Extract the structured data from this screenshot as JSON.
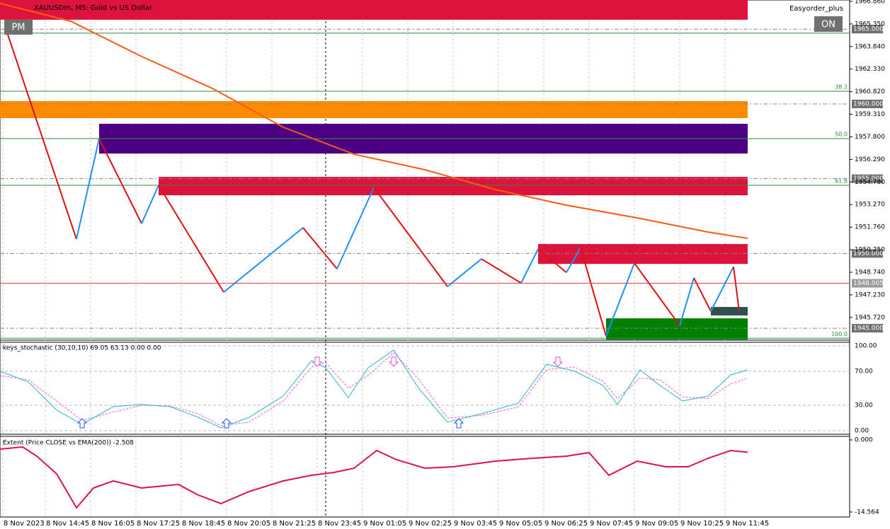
{
  "header": {
    "symbol": "XAUUSDm, M5: Gold vs US Dollar",
    "expert": "Easyorder_plus",
    "pm_button": "PM",
    "on_button": "ON"
  },
  "time_axis": {
    "xlim": [
      -1,
      298
    ],
    "ticks": [
      {
        "value": 0,
        "label": "8 Nov 2023"
      },
      {
        "value": 15,
        "label": "8 Nov 14:45"
      },
      {
        "value": 31,
        "label": "8 Nov 16:05"
      },
      {
        "value": 47,
        "label": "8 Nov 17:25"
      },
      {
        "value": 63,
        "label": "8 Nov 18:45"
      },
      {
        "value": 79,
        "label": "8 Nov 20:05"
      },
      {
        "value": 95,
        "label": "8 Nov 21:25"
      },
      {
        "value": 111,
        "label": "8 Nov 23:45"
      },
      {
        "value": 127,
        "label": "9 Nov 01:05"
      },
      {
        "value": 143,
        "label": "9 Nov 02:25"
      },
      {
        "value": 159,
        "label": "9 Nov 03:45"
      },
      {
        "value": 175,
        "label": "9 Nov 05:05"
      },
      {
        "value": 191,
        "label": "9 Nov 06:25"
      },
      {
        "value": 207,
        "label": "9 Nov 07:45"
      },
      {
        "value": 223,
        "label": "9 Nov 09:05"
      },
      {
        "value": 239,
        "label": "9 Nov 10:25"
      },
      {
        "value": 255,
        "label": "9 Nov 11:45"
      }
    ],
    "crosshair": 114
  },
  "main_panel": {
    "ylim": [
      1944.2,
      1966.95
    ],
    "ticks": [
      {
        "value": 1966.86,
        "label": "1966.860"
      },
      {
        "value": 1965.35,
        "label": "1965.350"
      },
      {
        "value": 1963.84,
        "label": "1963.840"
      },
      {
        "value": 1962.33,
        "label": "1962.330"
      },
      {
        "value": 1960.82,
        "label": "1960.820"
      },
      {
        "value": 1959.31,
        "label": "1959.310"
      },
      {
        "value": 1957.8,
        "label": "1957.800"
      },
      {
        "value": 1956.29,
        "label": "1956.290"
      },
      {
        "value": 1954.78,
        "label": "1954.780"
      },
      {
        "value": 1953.27,
        "label": "1953.270"
      },
      {
        "value": 1951.76,
        "label": "1951.760"
      },
      {
        "value": 1950.25,
        "label": "1950.250"
      },
      {
        "value": 1948.74,
        "label": "1948.740"
      },
      {
        "value": 1947.23,
        "label": "1947.230"
      },
      {
        "value": 1945.72,
        "label": "1945.720"
      }
    ],
    "levels": [
      {
        "value": 1965,
        "label": "1965.000"
      },
      {
        "value": 1960,
        "label": "1960.000"
      },
      {
        "value": 1955,
        "label": "1955.000"
      },
      {
        "value": 1950,
        "label": "1950.000"
      },
      {
        "value": 1945,
        "label": "1945.000"
      }
    ],
    "current_price": {
      "value": 1948.005,
      "label": "1948.005"
    },
    "zones": [
      {
        "start": -1,
        "end": 263,
        "top": 1966.95,
        "bottom": 1965.63,
        "color": "#dc143c"
      },
      {
        "start": -1,
        "end": 263,
        "top": 1960.19,
        "bottom": 1959.05,
        "color": "#ff8c00"
      },
      {
        "start": 34,
        "end": 263,
        "top": 1958.67,
        "bottom": 1956.68,
        "color": "#4b0082"
      },
      {
        "start": 55,
        "end": 263,
        "top": 1955.12,
        "bottom": 1953.89,
        "color": "#dc143c"
      },
      {
        "start": 189,
        "end": 263,
        "top": 1950.63,
        "bottom": 1949.3,
        "color": "#dc143c"
      },
      {
        "start": 250,
        "end": 263,
        "top": 1946.42,
        "bottom": 1945.85,
        "color": "#2f4f4f"
      },
      {
        "start": 213,
        "end": 263,
        "top": 1945.66,
        "bottom": 1944.24,
        "color": "#008000"
      }
    ],
    "fib_levels": [
      {
        "value": 1964.73
      },
      {
        "value": 1960.85,
        "label": "38.2"
      },
      {
        "value": 1957.68,
        "label": "50.0"
      },
      {
        "value": 1954.56,
        "label": "61.8"
      },
      {
        "value": 1944.33,
        "label": "100.0"
      }
    ],
    "zigzag": {
      "x": [
        1,
        26,
        34,
        49,
        55,
        78,
        106,
        118,
        131,
        157,
        169,
        183,
        189,
        199,
        204,
        213,
        223,
        239,
        244,
        250,
        258,
        260
      ],
      "values": [
        1965.06,
        1950.96,
        1957.68,
        1952.0,
        1954.56,
        1947.41,
        1951.72,
        1948.97,
        1954.41,
        1947.79,
        1949.63,
        1948.02,
        1950.3,
        1948.73,
        1950.39,
        1944.47,
        1949.35,
        1945.18,
        1948.36,
        1946.13,
        1949.11,
        1946.13
      ],
      "up_color": "#1e90ff",
      "down_color": "#e01010"
    },
    "ema": {
      "x": [
        -1,
        24,
        49,
        74,
        99,
        124,
        149,
        174,
        199,
        224,
        249,
        263
      ],
      "values": [
        1966.72,
        1965.53,
        1963.17,
        1961.04,
        1958.44,
        1956.64,
        1955.6,
        1954.27,
        1953.23,
        1952.38,
        1951.43,
        1951.01
      ],
      "color": "#ff5a14"
    }
  },
  "stochastic_panel": {
    "title": "keys_stochastic (30,10,10) 69.05 63.13 0.00 0.00",
    "ylim": [
      -4.2,
      104.2
    ],
    "ticks": [
      {
        "value": 100,
        "label": "100.00"
      },
      {
        "value": 70,
        "label": "70.00"
      },
      {
        "value": 30,
        "label": "30.00"
      },
      {
        "value": 0,
        "label": "0.00"
      }
    ],
    "main": {
      "x": [
        -1,
        9,
        19,
        28,
        39,
        49,
        59,
        69,
        77,
        87,
        99,
        109,
        114,
        122,
        129,
        138,
        147,
        157,
        169,
        182,
        192,
        202,
        212,
        217,
        225,
        232,
        240,
        249,
        257,
        263
      ],
      "values": [
        70.0,
        57.5,
        24.2,
        7.5,
        28.3,
        30.8,
        28.3,
        15.8,
        3.3,
        15.8,
        40.8,
        82.5,
        74.2,
        39.2,
        74.2,
        95.0,
        49.2,
        10.0,
        20.0,
        32.5,
        78.3,
        70.0,
        53.3,
        30.8,
        71.7,
        53.3,
        35.0,
        40.8,
        65.8,
        71.7
      ],
      "color": "#2ab6c6"
    },
    "signal": {
      "x": [
        -1,
        9,
        19,
        28,
        39,
        49,
        59,
        69,
        77,
        87,
        99,
        109,
        114,
        122,
        129,
        138,
        147,
        157,
        169,
        182,
        192,
        202,
        212,
        217,
        225,
        232,
        240,
        249,
        257,
        263
      ],
      "values": [
        65,
        60,
        35,
        12,
        22,
        30,
        29,
        20,
        6,
        10,
        35,
        75,
        80,
        50,
        65,
        92,
        60,
        15,
        18,
        28,
        72,
        75,
        58,
        38,
        62,
        60,
        40,
        38,
        55,
        62
      ],
      "color": "#ff5ad2"
    },
    "up_arrows": [
      28,
      79,
      161
    ],
    "down_arrows": [
      111,
      138,
      196
    ]
  },
  "extent_panel": {
    "title": "Extent (Price CLOSE vs EMA(200)) -2.508",
    "ylim": [
      -15.57,
      0.71
    ],
    "ticks": [
      {
        "value": 0,
        "label": "0.000"
      },
      {
        "value": -14.564,
        "label": "-14.564"
      }
    ],
    "line": {
      "x": [
        -1,
        7,
        12,
        19,
        26,
        32,
        39,
        49,
        62,
        69,
        77,
        87,
        99,
        109,
        117,
        124,
        132,
        139,
        149,
        159,
        174,
        187,
        199,
        207,
        214,
        224,
        234,
        242,
        249,
        257,
        263
      ],
      "values": [
        -1.86,
        -1.43,
        -3.29,
        -6.86,
        -13.71,
        -9.71,
        -8.29,
        -9.71,
        -9.0,
        -11.14,
        -12.86,
        -10.43,
        -8.29,
        -7.14,
        -6.57,
        -5.71,
        -2.14,
        -4.0,
        -5.71,
        -5.43,
        -4.29,
        -3.71,
        -3.29,
        -2.57,
        -7.14,
        -4.29,
        -5.43,
        -5.43,
        -3.71,
        -2.14,
        -2.508
      ],
      "color": "#e0104e"
    }
  }
}
